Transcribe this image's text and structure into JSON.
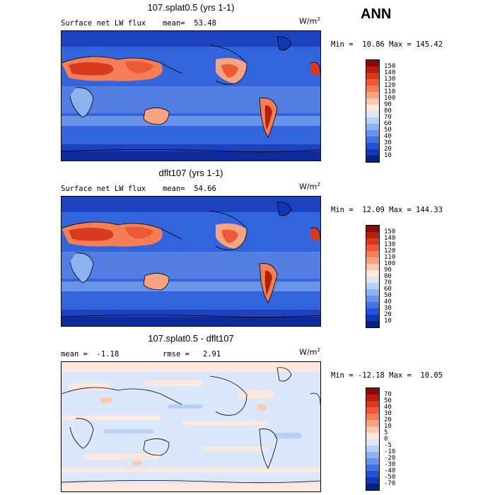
{
  "season": "ANN",
  "units_base": "W/m",
  "units_exp": "2",
  "panels": [
    {
      "title": "107.splat0.5 (yrs 1-1)",
      "left_text": "Surface net LW flux",
      "mid_text": "mean=  53.48",
      "minmax": "Min =  10.86 Max = 145.42",
      "levels": [
        "150",
        "140",
        "130",
        "120",
        "110",
        "100",
        "90",
        "80",
        "70",
        "60",
        "50",
        "40",
        "30",
        "20",
        "10"
      ],
      "colors": [
        "#8a0b0b",
        "#b3200e",
        "#d93a1f",
        "#ec5a35",
        "#f47f56",
        "#f8a483",
        "#fbc9b0",
        "#fde8dc",
        "#dbe8fb",
        "#b6d0f6",
        "#8db2ef",
        "#6993e8",
        "#4573e0",
        "#2352d4",
        "#1137b3",
        "#06207e"
      ]
    },
    {
      "title": "dflt107 (yrs 1-1)",
      "left_text": "Surface net LW flux",
      "mid_text": "mean=  54.66",
      "minmax": "Min =  12.09 Max = 144.33",
      "levels": [
        "150",
        "140",
        "130",
        "120",
        "110",
        "100",
        "90",
        "80",
        "70",
        "60",
        "50",
        "40",
        "30",
        "20",
        "10"
      ],
      "colors": [
        "#8a0b0b",
        "#b3200e",
        "#d93a1f",
        "#ec5a35",
        "#f47f56",
        "#f8a483",
        "#fbc9b0",
        "#fde8dc",
        "#dbe8fb",
        "#b6d0f6",
        "#8db2ef",
        "#6993e8",
        "#4573e0",
        "#2352d4",
        "#1137b3",
        "#06207e"
      ]
    },
    {
      "title": "107.splat0.5 - dflt107",
      "left_text": "mean =  -1.18",
      "mid_text": "rmse =   2.91",
      "minmax": "Min = -12.18 Max =  10.05",
      "levels": [
        "70",
        "50",
        "40",
        "30",
        "20",
        "10",
        "5",
        "0",
        "-5",
        "-10",
        "-20",
        "-30",
        "-40",
        "-50",
        "-70"
      ],
      "colors": [
        "#8a0b0b",
        "#b3200e",
        "#d93a1f",
        "#ec5a35",
        "#f47f56",
        "#f8a483",
        "#fbc9b0",
        "#fde8dc",
        "#dbe8fb",
        "#b6d0f6",
        "#8db2ef",
        "#6993e8",
        "#4573e0",
        "#2352d4",
        "#1137b3",
        "#06207e"
      ]
    }
  ],
  "chart_data": {
    "type": "heatmap",
    "season": "ANN",
    "field": "Surface net LW flux",
    "units": "W/m2",
    "maps": [
      {
        "title": "107.splat0.5 (yrs 1-1)",
        "mean": 53.48,
        "min": 10.86,
        "max": 145.42,
        "contour_levels": [
          10,
          20,
          30,
          40,
          50,
          60,
          70,
          80,
          90,
          100,
          110,
          120,
          130,
          140,
          150
        ]
      },
      {
        "title": "dflt107 (yrs 1-1)",
        "mean": 54.66,
        "min": 12.09,
        "max": 144.33,
        "contour_levels": [
          10,
          20,
          30,
          40,
          50,
          60,
          70,
          80,
          90,
          100,
          110,
          120,
          130,
          140,
          150
        ]
      },
      {
        "title": "107.splat0.5 - dflt107",
        "mean": -1.18,
        "rmse": 2.91,
        "min": -12.18,
        "max": 10.05,
        "contour_levels": [
          -70,
          -50,
          -40,
          -30,
          -20,
          -10,
          -5,
          0,
          5,
          10,
          20,
          30,
          40,
          50,
          70
        ]
      }
    ]
  }
}
